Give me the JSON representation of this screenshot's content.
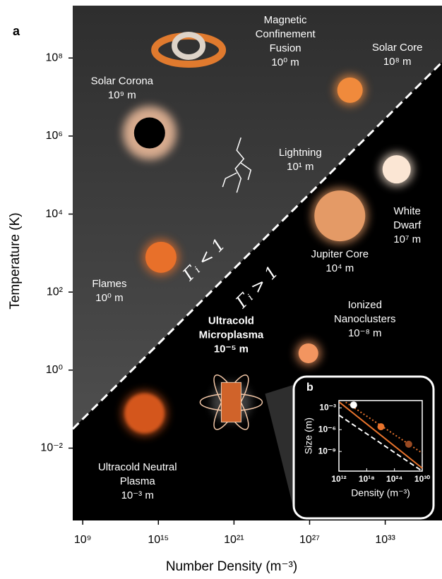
{
  "chart_data": [
    {
      "type": "scatter",
      "panel": "a",
      "xlabel": "Number Density (m⁻³)",
      "ylabel": "Temperature (K)",
      "xlog": true,
      "ylog": true,
      "xlim": [
        160000000.0,
        3.2e+37
      ],
      "ylim": [
        0.00014,
        2200000000.0
      ],
      "xticks": [
        {
          "value": 1000000000.0,
          "label": "10⁹"
        },
        {
          "value": 1000000000000000.0,
          "label": "10¹⁵"
        },
        {
          "value": 1e+21,
          "label": "10²¹"
        },
        {
          "value": 1e+27,
          "label": "10²⁷"
        },
        {
          "value": 1e+33,
          "label": "10³³"
        }
      ],
      "yticks": [
        {
          "value": 100000000.0,
          "label": "10⁸"
        },
        {
          "value": 1000000.0,
          "label": "10⁶"
        },
        {
          "value": 10000.0,
          "label": "10⁴"
        },
        {
          "value": 100.0,
          "label": "10²"
        },
        {
          "value": 1,
          "label": "10⁰"
        },
        {
          "value": 0.01,
          "label": "10⁻²"
        }
      ],
      "boundary": {
        "x": [
          160000000.0,
          3.2e+37
        ],
        "y": [
          0.031,
          78000000.0
        ],
        "color": "#ffffff"
      },
      "regions": [
        "Γᵢ < 1",
        "Γᵢ > 1"
      ],
      "points": [
        {
          "name": [
            "Magnetic",
            "Confinement",
            "Fusion"
          ],
          "size": "10⁰ m",
          "x": 2.5e+17,
          "y": 160000000.0,
          "color": "#e07a2e"
        },
        {
          "name": [
            "Solar Core"
          ],
          "size": "10⁸ m",
          "x": 1.6e+30,
          "y": 15000000.0,
          "color": "#f08a3c"
        },
        {
          "name": [
            "Solar Corona"
          ],
          "size": "10⁹ m",
          "x": 200000000000000.0,
          "y": 1200000.0,
          "color": "#e8b898"
        },
        {
          "name": [
            "Lightning"
          ],
          "size": "10¹ m",
          "x": 6e+21,
          "y": 140000.0,
          "color": "#ffffff"
        },
        {
          "name": [
            "White",
            "Dwarf"
          ],
          "size": "10⁷ m",
          "x": 8e+33,
          "y": 140000.0,
          "color": "#fbe6d4"
        },
        {
          "name": [
            "Jupiter Core"
          ],
          "size": "10⁴ m",
          "x": 2.5e+29,
          "y": 9000,
          "color": "#e49a66"
        },
        {
          "name": [
            "Flames"
          ],
          "size": "10⁰ m",
          "x": 1600000000000000.0,
          "y": 780,
          "color": "#e8702a"
        },
        {
          "name": [
            "Ionized",
            "Nanoclusters"
          ],
          "size": "10⁻⁸ m",
          "x": 8e+26,
          "y": 2.7,
          "color": "#f29560"
        },
        {
          "name": [
            "Ultracold",
            "Microplasma"
          ],
          "size": "10⁻⁵ m",
          "x": 6e+20,
          "y": 0.15,
          "color": "#f4c8a8",
          "bold": true
        },
        {
          "name": [
            "Ultracold Neutral",
            "Plasma"
          ],
          "size": "10⁻³ m",
          "x": 80000000000000.0,
          "y": 0.078,
          "color": "#d4571c"
        }
      ]
    },
    {
      "type": "scatter",
      "panel": "b",
      "xlabel": "Density (m⁻³)",
      "ylabel": "Size (m)",
      "xlog": true,
      "ylog": true,
      "xlim": [
        1000000000000.0,
        1e+30
      ],
      "ylim": [
        2e-12,
        0.01
      ],
      "xticks": [
        {
          "value": 1000000000000.0,
          "label": "10¹²"
        },
        {
          "value": 1e+18,
          "label": "10¹⁸"
        },
        {
          "value": 1e+24,
          "label": "10²⁴"
        },
        {
          "value": 1e+30,
          "label": "10³⁰"
        }
      ],
      "yticks": [
        {
          "value": 0.001,
          "label": "10⁻³"
        },
        {
          "value": 1e-06,
          "label": "10⁻⁶"
        },
        {
          "value": 1e-09,
          "label": "10⁻⁹"
        }
      ],
      "points": [
        {
          "x": 1500000000000000.0,
          "y": 0.0025,
          "color": "#ffffff"
        },
        {
          "x": 1.2e+21,
          "y": 2.5e-06,
          "color": "#e8732c"
        },
        {
          "x": 1.2e+27,
          "y": 1e-08,
          "color": "#9a4a22"
        }
      ],
      "lines": [
        {
          "x": [
            1300000000000.0,
            1e+30
          ],
          "y": [
            0.006,
            5e-12
          ],
          "color": "#e8732c",
          "style": "solid"
        },
        {
          "x": [
            30000000000000.0,
            1e+30
          ],
          "y": [
            0.006,
            6e-10
          ],
          "color": "#e8732c",
          "style": "dotted"
        },
        {
          "x": [
            1000000000000.0,
            1e+30
          ],
          "y": [
            0.0001,
            2e-12
          ],
          "color": "#ffffff",
          "style": "dashed"
        }
      ]
    }
  ]
}
